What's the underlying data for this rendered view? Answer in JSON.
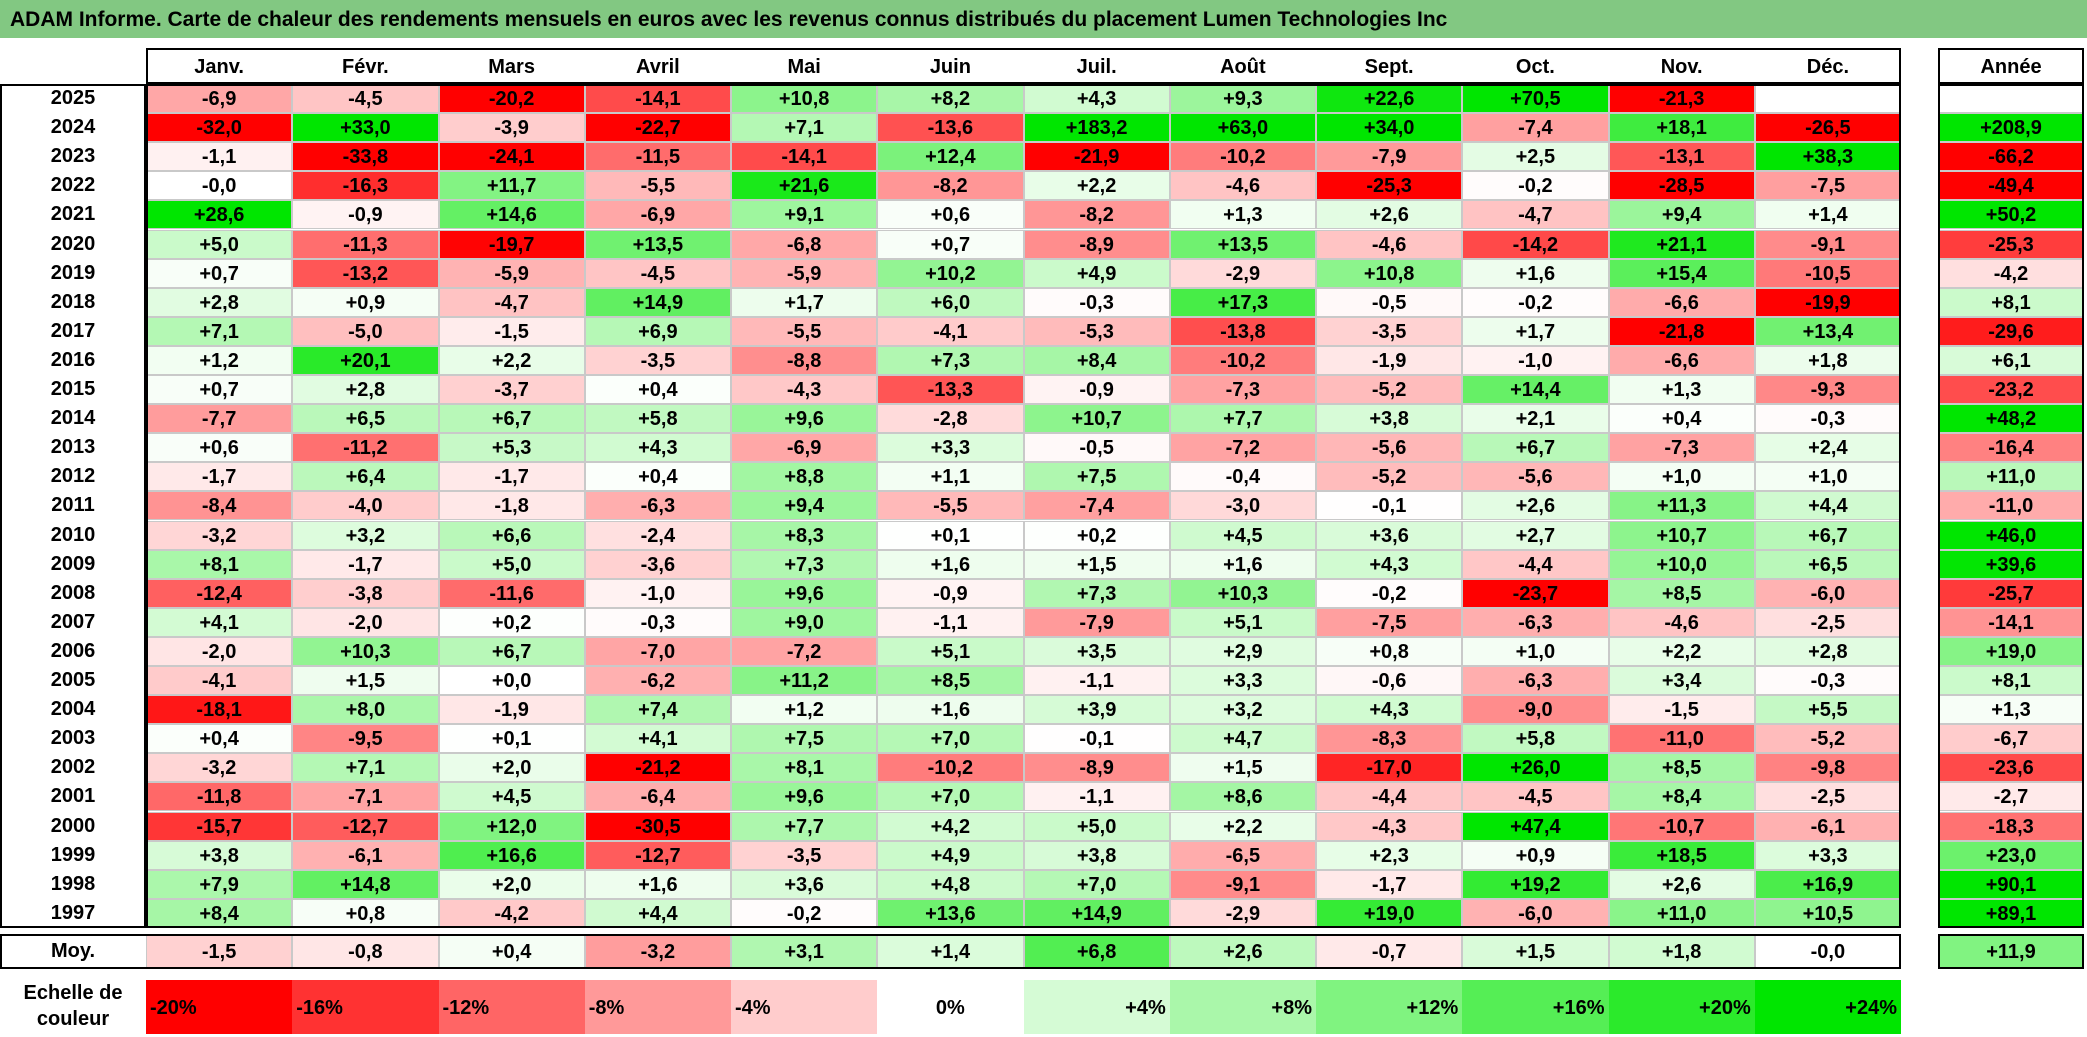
{
  "title": "ADAM Informe. Carte de chaleur des rendements mensuels en euros avec les revenus connus distribués du placement Lumen Technologies Inc",
  "colors": {
    "title_bg": "#82c882",
    "negative_max": "#ff0000",
    "neutral": "#ffffff",
    "positive_max": "#00e600"
  },
  "chart_data": {
    "type": "heatmap",
    "title": "ADAM Informe. Carte de chaleur des rendements mensuels en euros avec les revenus connus distribués du placement Lumen Technologies Inc",
    "months": [
      "Janv.",
      "Févr.",
      "Mars",
      "Avril",
      "Mai",
      "Juin",
      "Juil.",
      "Août",
      "Sept.",
      "Oct.",
      "Nov.",
      "Déc."
    ],
    "year_header": "Année",
    "rows": [
      {
        "year": "2025",
        "values": [
          "-6,9",
          "-4,5",
          "-20,2",
          "-14,1",
          "+10,8",
          "+8,2",
          "+4,3",
          "+9,3",
          "+22,6",
          "+70,5",
          "-21,3",
          ""
        ],
        "annual": ""
      },
      {
        "year": "2024",
        "values": [
          "-32,0",
          "+33,0",
          "-3,9",
          "-22,7",
          "+7,1",
          "-13,6",
          "+183,2",
          "+63,0",
          "+34,0",
          "-7,4",
          "+18,1",
          "-26,5"
        ],
        "annual": "+208,9"
      },
      {
        "year": "2023",
        "values": [
          "-1,1",
          "-33,8",
          "-24,1",
          "-11,5",
          "-14,1",
          "+12,4",
          "-21,9",
          "-10,2",
          "-7,9",
          "+2,5",
          "-13,1",
          "+38,3"
        ],
        "annual": "-66,2"
      },
      {
        "year": "2022",
        "values": [
          "-0,0",
          "-16,3",
          "+11,7",
          "-5,5",
          "+21,6",
          "-8,2",
          "+2,2",
          "-4,6",
          "-25,3",
          "-0,2",
          "-28,5",
          "-7,5"
        ],
        "annual": "-49,4"
      },
      {
        "year": "2021",
        "values": [
          "+28,6",
          "-0,9",
          "+14,6",
          "-6,9",
          "+9,1",
          "+0,6",
          "-8,2",
          "+1,3",
          "+2,6",
          "-4,7",
          "+9,4",
          "+1,4"
        ],
        "annual": "+50,2"
      },
      {
        "year": "2020",
        "values": [
          "+5,0",
          "-11,3",
          "-19,7",
          "+13,5",
          "-6,8",
          "+0,7",
          "-8,9",
          "+13,5",
          "-4,6",
          "-14,2",
          "+21,1",
          "-9,1"
        ],
        "annual": "-25,3"
      },
      {
        "year": "2019",
        "values": [
          "+0,7",
          "-13,2",
          "-5,9",
          "-4,5",
          "-5,9",
          "+10,2",
          "+4,9",
          "-2,9",
          "+10,8",
          "+1,6",
          "+15,4",
          "-10,5"
        ],
        "annual": "-4,2"
      },
      {
        "year": "2018",
        "values": [
          "+2,8",
          "+0,9",
          "-4,7",
          "+14,9",
          "+1,7",
          "+6,0",
          "-0,3",
          "+17,3",
          "-0,5",
          "-0,2",
          "-6,6",
          "-19,9"
        ],
        "annual": "+8,1"
      },
      {
        "year": "2017",
        "values": [
          "+7,1",
          "-5,0",
          "-1,5",
          "+6,9",
          "-5,5",
          "-4,1",
          "-5,3",
          "-13,8",
          "-3,5",
          "+1,7",
          "-21,8",
          "+13,4"
        ],
        "annual": "-29,6"
      },
      {
        "year": "2016",
        "values": [
          "+1,2",
          "+20,1",
          "+2,2",
          "-3,5",
          "-8,8",
          "+7,3",
          "+8,4",
          "-10,2",
          "-1,9",
          "-1,0",
          "-6,6",
          "+1,8"
        ],
        "annual": "+6,1"
      },
      {
        "year": "2015",
        "values": [
          "+0,7",
          "+2,8",
          "-3,7",
          "+0,4",
          "-4,3",
          "-13,3",
          "-0,9",
          "-7,3",
          "-5,2",
          "+14,4",
          "+1,3",
          "-9,3"
        ],
        "annual": "-23,2"
      },
      {
        "year": "2014",
        "values": [
          "-7,7",
          "+6,5",
          "+6,7",
          "+5,8",
          "+9,6",
          "-2,8",
          "+10,7",
          "+7,7",
          "+3,8",
          "+2,1",
          "+0,4",
          "-0,3"
        ],
        "annual": "+48,2"
      },
      {
        "year": "2013",
        "values": [
          "+0,6",
          "-11,2",
          "+5,3",
          "+4,3",
          "-6,9",
          "+3,3",
          "-0,5",
          "-7,2",
          "-5,6",
          "+6,7",
          "-7,3",
          "+2,4"
        ],
        "annual": "-16,4"
      },
      {
        "year": "2012",
        "values": [
          "-1,7",
          "+6,4",
          "-1,7",
          "+0,4",
          "+8,8",
          "+1,1",
          "+7,5",
          "-0,4",
          "-5,2",
          "-5,6",
          "+1,0",
          "+1,0"
        ],
        "annual": "+11,0"
      },
      {
        "year": "2011",
        "values": [
          "-8,4",
          "-4,0",
          "-1,8",
          "-6,3",
          "+9,4",
          "-5,5",
          "-7,4",
          "-3,0",
          "-0,1",
          "+2,6",
          "+11,3",
          "+4,4"
        ],
        "annual": "-11,0"
      },
      {
        "year": "2010",
        "values": [
          "-3,2",
          "+3,2",
          "+6,6",
          "-2,4",
          "+8,3",
          "+0,1",
          "+0,2",
          "+4,5",
          "+3,6",
          "+2,7",
          "+10,7",
          "+6,7"
        ],
        "annual": "+46,0"
      },
      {
        "year": "2009",
        "values": [
          "+8,1",
          "-1,7",
          "+5,0",
          "-3,6",
          "+7,3",
          "+1,6",
          "+1,5",
          "+1,6",
          "+4,3",
          "-4,4",
          "+10,0",
          "+6,5"
        ],
        "annual": "+39,6"
      },
      {
        "year": "2008",
        "values": [
          "-12,4",
          "-3,8",
          "-11,6",
          "-1,0",
          "+9,6",
          "-0,9",
          "+7,3",
          "+10,3",
          "-0,2",
          "-23,7",
          "+8,5",
          "-6,0"
        ],
        "annual": "-25,7"
      },
      {
        "year": "2007",
        "values": [
          "+4,1",
          "-2,0",
          "+0,2",
          "-0,3",
          "+9,0",
          "-1,1",
          "-7,9",
          "+5,1",
          "-7,5",
          "-6,3",
          "-4,6",
          "-2,5"
        ],
        "annual": "-14,1"
      },
      {
        "year": "2006",
        "values": [
          "-2,0",
          "+10,3",
          "+6,7",
          "-7,0",
          "-7,2",
          "+5,1",
          "+3,5",
          "+2,9",
          "+0,8",
          "+1,0",
          "+2,2",
          "+2,8"
        ],
        "annual": "+19,0"
      },
      {
        "year": "2005",
        "values": [
          "-4,1",
          "+1,5",
          "+0,0",
          "-6,2",
          "+11,2",
          "+8,5",
          "-1,1",
          "+3,3",
          "-0,6",
          "-6,3",
          "+3,4",
          "-0,3"
        ],
        "annual": "+8,1"
      },
      {
        "year": "2004",
        "values": [
          "-18,1",
          "+8,0",
          "-1,9",
          "+7,4",
          "+1,2",
          "+1,6",
          "+3,9",
          "+3,2",
          "+4,3",
          "-9,0",
          "-1,5",
          "+5,5"
        ],
        "annual": "+1,3"
      },
      {
        "year": "2003",
        "values": [
          "+0,4",
          "-9,5",
          "+0,1",
          "+4,1",
          "+7,5",
          "+7,0",
          "-0,1",
          "+4,7",
          "-8,3",
          "+5,8",
          "-11,0",
          "-5,2"
        ],
        "annual": "-6,7"
      },
      {
        "year": "2002",
        "values": [
          "-3,2",
          "+7,1",
          "+2,0",
          "-21,2",
          "+8,1",
          "-10,2",
          "-8,9",
          "+1,5",
          "-17,0",
          "+26,0",
          "+8,5",
          "-9,8"
        ],
        "annual": "-23,6"
      },
      {
        "year": "2001",
        "values": [
          "-11,8",
          "-7,1",
          "+4,5",
          "-6,4",
          "+9,6",
          "+7,0",
          "-1,1",
          "+8,6",
          "-4,4",
          "-4,5",
          "+8,4",
          "-2,5"
        ],
        "annual": "-2,7"
      },
      {
        "year": "2000",
        "values": [
          "-15,7",
          "-12,7",
          "+12,0",
          "-30,5",
          "+7,7",
          "+4,2",
          "+5,0",
          "+2,2",
          "-4,3",
          "+47,4",
          "-10,7",
          "-6,1"
        ],
        "annual": "-18,3"
      },
      {
        "year": "1999",
        "values": [
          "+3,8",
          "-6,1",
          "+16,6",
          "-12,7",
          "-3,5",
          "+4,9",
          "+3,8",
          "-6,5",
          "+2,3",
          "+0,9",
          "+18,5",
          "+3,3"
        ],
        "annual": "+23,0"
      },
      {
        "year": "1998",
        "values": [
          "+7,9",
          "+14,8",
          "+2,0",
          "+1,6",
          "+3,6",
          "+4,8",
          "+7,0",
          "-9,1",
          "-1,7",
          "+19,2",
          "+2,6",
          "+16,9"
        ],
        "annual": "+90,1"
      },
      {
        "year": "1997",
        "values": [
          "+8,4",
          "+0,8",
          "-4,2",
          "+4,4",
          "-0,2",
          "+13,6",
          "+14,9",
          "-2,9",
          "+19,0",
          "-6,0",
          "+11,0",
          "+10,5"
        ],
        "annual": "+89,1"
      }
    ],
    "average": {
      "label": "Moy.",
      "values": [
        "-1,5",
        "-0,8",
        "+0,4",
        "-3,2",
        "+3,1",
        "+1,4",
        "+6,8",
        "+2,6",
        "-0,7",
        "+1,5",
        "+1,8",
        "-0,0"
      ],
      "annual": "+11,9"
    },
    "color_scale": {
      "label": "Echelle de couleur",
      "steps": [
        {
          "label": "-20%",
          "value": -20,
          "align": "left"
        },
        {
          "label": "-16%",
          "value": -16,
          "align": "left"
        },
        {
          "label": "-12%",
          "value": -12,
          "align": "left"
        },
        {
          "label": "-8%",
          "value": -8,
          "align": "left"
        },
        {
          "label": "-4%",
          "value": -4,
          "align": "left"
        },
        {
          "label": "0%",
          "value": 0,
          "align": "center"
        },
        {
          "label": "+4%",
          "value": 4,
          "align": "right"
        },
        {
          "label": "+8%",
          "value": 8,
          "align": "right"
        },
        {
          "label": "+12%",
          "value": 12,
          "align": "right"
        },
        {
          "label": "+16%",
          "value": 16,
          "align": "right"
        },
        {
          "label": "+20%",
          "value": 20,
          "align": "right"
        },
        {
          "label": "+24%",
          "value": 24,
          "align": "right"
        }
      ]
    }
  }
}
